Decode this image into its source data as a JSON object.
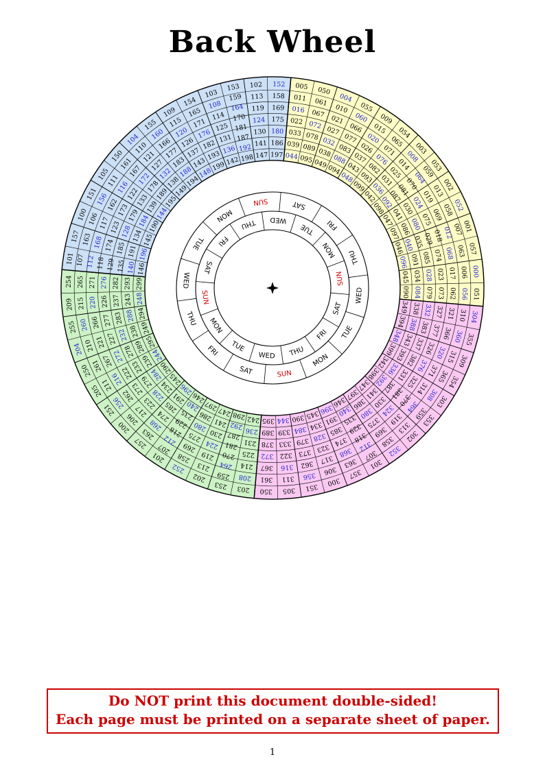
{
  "page": {
    "title": "Back Wheel",
    "page_number": "1",
    "warning": {
      "line1": "Do NOT print this document double-sided!",
      "line2": "Each page must be printed on a separate sheet of paper.",
      "text_color": "#CC0000",
      "border_color": "#CC0000"
    }
  },
  "wheel": {
    "colors": {
      "number": "#000000",
      "leap_number": "#2222CC",
      "sunday": "#CC0000",
      "weekday": "#000000",
      "line": "#000000"
    },
    "center_marker_icon": "four-pointed-star",
    "day_rings": {
      "outer": {
        "labels": [
          "SUN",
          "SAT",
          "FRI",
          "THU",
          "WED",
          "TUE",
          "MON",
          "SUN",
          "SAT",
          "FRI",
          "THU",
          "WED",
          "TUE",
          "MON"
        ]
      },
      "inner": {
        "labels": [
          "SUN",
          "SAT",
          "FRI",
          "THU",
          "WED",
          "TUE",
          "MON",
          "SUN",
          "SAT",
          "FRI",
          "THU",
          "WED",
          "TUE",
          "MON"
        ]
      }
    },
    "quadrants": [
      {
        "name": "years-000-099",
        "color": "#FCFCC6",
        "sectors": [
          {
            "columns": [
              [
                "005",
                "011",
                "016",
                "022",
                "033",
                "039",
                "044"
              ],
              [
                "050",
                "061",
                "067",
                "072",
                "078",
                "089",
                "095"
              ]
            ]
          },
          {
            "columns": [
              [
                "004",
                "010",
                "021",
                "027",
                "032",
                "038",
                "049"
              ],
              [
                "055",
                "060",
                "066",
                "077",
                "083",
                "088",
                "094"
              ]
            ]
          },
          {
            "columns": [
              [
                "009",
                "015",
                "020",
                "026",
                "037",
                "043",
                "048"
              ],
              [
                "054",
                "065",
                "071",
                "076",
                "082",
                "093",
                "099"
              ]
            ]
          },
          {
            "columns": [
              [
                "003",
                "008",
                "014",
                "025",
                "031",
                "036",
                "042"
              ],
              [
                "053",
                "059",
                "064",
                "070",
                "081",
                "087",
                "092",
                "098"
              ]
            ]
          },
          {
            "columns": [
              [
                "002",
                "013",
                "019",
                "024",
                "030",
                "041",
                "047"
              ],
              [
                "052",
                "058",
                "069",
                "075",
                "080",
                "086",
                "097"
              ]
            ]
          },
          {
            "columns": [
              [
                "001",
                "007",
                "012",
                "018",
                "029",
                "035",
                "040",
                "046"
              ],
              [
                "057",
                "063",
                "068",
                "074",
                "085",
                "091",
                "096"
              ]
            ]
          },
          {
            "columns": [
              [
                "000",
                "006",
                "017",
                "023",
                "028",
                "034",
                "045"
              ],
              [
                "051",
                "056",
                "062",
                "073",
                "079",
                "084",
                "090"
              ]
            ]
          }
        ]
      },
      {
        "name": "years-300-399",
        "color": "#FAC9F2",
        "sectors": [
          {
            "columns": [
              [
                "304",
                "310",
                "321",
                "327",
                "332",
                "338",
                "349"
              ],
              [
                "355",
                "360",
                "366",
                "377",
                "383",
                "388",
                "394"
              ]
            ]
          },
          {
            "columns": [
              [
                "309",
                "315",
                "320",
                "326",
                "337",
                "343",
                "348"
              ],
              [
                "354",
                "365",
                "371",
                "376",
                "382",
                "393",
                "399"
              ]
            ]
          },
          {
            "columns": [
              [
                "303",
                "308",
                "314",
                "325",
                "331",
                "336",
                "342"
              ],
              [
                "353",
                "359",
                "364",
                "370",
                "381",
                "387",
                "392",
                "398"
              ]
            ]
          },
          {
            "columns": [
              [
                "302",
                "313",
                "319",
                "324",
                "330",
                "341",
                "347"
              ],
              [
                "352",
                "358",
                "369",
                "375",
                "380",
                "386",
                "397"
              ]
            ]
          },
          {
            "columns": [
              [
                "301",
                "307",
                "312",
                "318",
                "329",
                "335",
                "340",
                "346"
              ],
              [
                "357",
                "363",
                "368",
                "374",
                "385",
                "391",
                "396"
              ]
            ]
          },
          {
            "columns": [
              [
                "300",
                "306",
                "317",
                "323",
                "328",
                "334",
                "345"
              ],
              [
                "351",
                "356",
                "362",
                "373",
                "379",
                "384",
                "390"
              ]
            ]
          },
          {
            "columns": [
              [
                "305",
                "311",
                "316",
                "322",
                "333",
                "339",
                "344"
              ],
              [
                "350",
                "361",
                "367",
                "372",
                "378",
                "389",
                "395"
              ]
            ]
          }
        ]
      },
      {
        "name": "years-200-299",
        "color": "#CDF2C6",
        "sectors": [
          {
            "columns": [
              [
                "203",
                "208",
                "214",
                "225",
                "231",
                "236",
                "242"
              ],
              [
                "253",
                "259",
                "264",
                "270",
                "281",
                "287",
                "292",
                "298"
              ]
            ]
          },
          {
            "columns": [
              [
                "202",
                "213",
                "219",
                "224",
                "230",
                "241",
                "247"
              ],
              [
                "252",
                "258",
                "269",
                "275",
                "280",
                "286",
                "297"
              ]
            ]
          },
          {
            "columns": [
              [
                "201",
                "207",
                "212",
                "218",
                "229",
                "235",
                "240",
                "246"
              ],
              [
                "257",
                "263",
                "268",
                "274",
                "285",
                "291",
                "296"
              ]
            ]
          },
          {
            "columns": [
              [
                "200",
                "206",
                "217",
                "223",
                "228",
                "234",
                "245"
              ],
              [
                "251",
                "256",
                "262",
                "273",
                "279",
                "284",
                "290"
              ]
            ]
          },
          {
            "columns": [
              [
                "205",
                "211",
                "216",
                "222",
                "233",
                "239",
                "244"
              ],
              [
                "250",
                "261",
                "267",
                "272",
                "278",
                "289",
                "295"
              ]
            ]
          },
          {
            "columns": [
              [
                "204",
                "210",
                "221",
                "227",
                "232",
                "238",
                "249"
              ],
              [
                "255",
                "260",
                "266",
                "277",
                "283",
                "288",
                "294"
              ]
            ]
          },
          {
            "columns": [
              [
                "209",
                "215",
                "220",
                "226",
                "237",
                "243",
                "248"
              ],
              [
                "254",
                "265",
                "271",
                "276",
                "282",
                "293",
                "299"
              ]
            ]
          }
        ]
      },
      {
        "name": "years-100-199",
        "color": "#CCE0F6",
        "sectors": [
          {
            "columns": [
              [
                "101",
                "107",
                "112",
                "118",
                "129",
                "135",
                "140",
                "146"
              ],
              [
                "157",
                "163",
                "168",
                "174",
                "185",
                "191",
                "196"
              ]
            ]
          },
          {
            "columns": [
              [
                "100",
                "106",
                "117",
                "123",
                "128",
                "134",
                "145"
              ],
              [
                "151",
                "156",
                "162",
                "173",
                "179",
                "184",
                "190"
              ]
            ]
          },
          {
            "columns": [
              [
                "105",
                "111",
                "116",
                "122",
                "133",
                "139",
                "144"
              ],
              [
                "150",
                "161",
                "167",
                "172",
                "178",
                "189",
                "195"
              ]
            ]
          },
          {
            "columns": [
              [
                "104",
                "110",
                "121",
                "127",
                "132",
                "138",
                "149"
              ],
              [
                "155",
                "160",
                "166",
                "177",
                "183",
                "188",
                "194"
              ]
            ]
          },
          {
            "columns": [
              [
                "109",
                "115",
                "120",
                "126",
                "137",
                "143",
                "148"
              ],
              [
                "154",
                "165",
                "171",
                "176",
                "182",
                "193",
                "199"
              ]
            ]
          },
          {
            "columns": [
              [
                "103",
                "108",
                "114",
                "125",
                "131",
                "136",
                "142"
              ],
              [
                "153",
                "159",
                "164",
                "170",
                "181",
                "187",
                "192",
                "198"
              ]
            ]
          },
          {
            "columns": [
              [
                "102",
                "113",
                "119",
                "124",
                "130",
                "141",
                "147"
              ],
              [
                "152",
                "158",
                "169",
                "175",
                "180",
                "186",
                "197"
              ]
            ]
          }
        ]
      }
    ]
  }
}
